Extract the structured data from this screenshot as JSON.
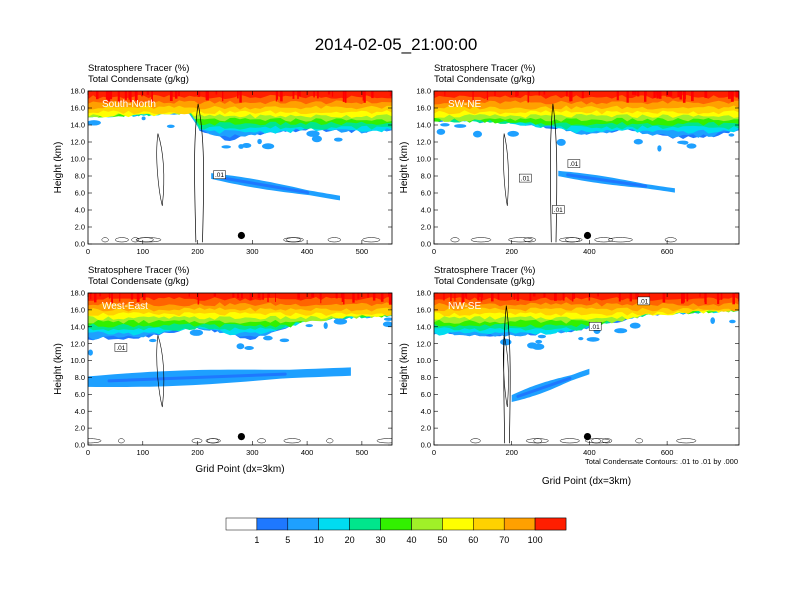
{
  "title": "2014-02-05_21:00:00",
  "colors": {
    "levels": [
      "#ffffff",
      "#1e78ff",
      "#1ea0ff",
      "#00dcf0",
      "#00e68c",
      "#32f000",
      "#a0f028",
      "#ffff00",
      "#ffd200",
      "#ffa000",
      "#ff6400",
      "#ff1e00"
    ],
    "contour": "#000000"
  },
  "colorbar": {
    "labels": [
      "1",
      "5",
      "10",
      "20",
      "30",
      "40",
      "50",
      "60",
      "70",
      "100"
    ]
  },
  "note": "Total Condensate Contours: .01 to .01 by .000",
  "chart_data": [
    {
      "type": "heatmap",
      "title_lines": [
        "Stratosphere Tracer   (%)",
        "Total Condensate   (g/kg)"
      ],
      "region_label": "South-North",
      "xlabel": "",
      "ylabel": "Height (km)",
      "xlim": [
        0,
        555
      ],
      "ylim": [
        0,
        18
      ],
      "x_ticks": [
        0,
        100,
        200,
        300,
        400,
        500
      ],
      "y_ticks": [
        "0.0",
        "2.0",
        "4.0",
        "6.0",
        "8.0",
        "10.0",
        "12.0",
        "14.0",
        "16.0",
        "18.0"
      ],
      "marker": {
        "x": 280,
        "y": 1.0
      },
      "contour_labels": [
        {
          "x": 240,
          "y": 8.1,
          "text": ".01"
        }
      ],
      "tracer_base_km": [
        [
          0,
          15.1
        ],
        [
          100,
          15.2
        ],
        [
          190,
          15.5
        ],
        [
          200,
          13.5
        ],
        [
          250,
          12.2
        ],
        [
          300,
          12.8
        ],
        [
          400,
          13.5
        ],
        [
          500,
          13.2
        ],
        [
          555,
          13.5
        ]
      ],
      "anvil_plume": {
        "start": [
          225,
          8.0
        ],
        "end": [
          460,
          5.4
        ],
        "thickness_km": 1.0
      },
      "grid": false
    },
    {
      "type": "heatmap",
      "title_lines": [
        "Stratosphere Tracer   (%)",
        "Total Condensate   (g/kg)"
      ],
      "region_label": "SW-NE",
      "xlabel": "",
      "ylabel": "Height (km)",
      "xlim": [
        0,
        785
      ],
      "ylim": [
        0,
        18
      ],
      "x_ticks": [
        0,
        200,
        400,
        600
      ],
      "y_ticks": [
        "0.0",
        "2.0",
        "4.0",
        "6.0",
        "8.0",
        "10.0",
        "12.0",
        "14.0",
        "16.0",
        "18.0"
      ],
      "marker": {
        "x": 395,
        "y": 1.0
      },
      "contour_labels": [
        {
          "x": 235,
          "y": 7.7,
          "text": ".01"
        },
        {
          "x": 320,
          "y": 4.0,
          "text": ".01"
        },
        {
          "x": 360,
          "y": 9.4,
          "text": ".01"
        }
      ],
      "tracer_base_km": [
        [
          0,
          14.6
        ],
        [
          150,
          14.4
        ],
        [
          300,
          13.8
        ],
        [
          400,
          12.8
        ],
        [
          500,
          13.5
        ],
        [
          600,
          12.5
        ],
        [
          700,
          12.6
        ],
        [
          785,
          13.5
        ]
      ],
      "anvil_plume": {
        "start": [
          320,
          8.3
        ],
        "end": [
          620,
          6.3
        ],
        "thickness_km": 0.9
      },
      "grid": false
    },
    {
      "type": "heatmap",
      "title_lines": [
        "Stratosphere Tracer   (%)",
        "Total Condensate   (g/kg)"
      ],
      "region_label": "West-East",
      "xlabel": "Grid Point (dx=3km)",
      "ylabel": "Height (km)",
      "xlim": [
        0,
        555
      ],
      "ylim": [
        0,
        18
      ],
      "x_ticks": [
        0,
        100,
        200,
        300,
        400,
        500
      ],
      "y_ticks": [
        "0.0",
        "2.0",
        "4.0",
        "6.0",
        "8.0",
        "10.0",
        "12.0",
        "14.0",
        "16.0",
        "18.0"
      ],
      "marker": {
        "x": 280,
        "y": 1.0
      },
      "contour_labels": [
        {
          "x": 60,
          "y": 11.5,
          "text": ".01"
        }
      ],
      "tracer_base_km": [
        [
          0,
          12.5
        ],
        [
          100,
          12.8
        ],
        [
          200,
          14.0
        ],
        [
          300,
          12.5
        ],
        [
          400,
          14.8
        ],
        [
          500,
          15.2
        ],
        [
          555,
          15.4
        ]
      ],
      "anvil_plume": {
        "start": [
          0,
          7.5
        ],
        "end": [
          480,
          8.7
        ],
        "thickness_km": 1.8
      },
      "grid": false
    },
    {
      "type": "heatmap",
      "title_lines": [
        "Stratosphere Tracer   (%)",
        "Total Condensate   (g/kg)"
      ],
      "region_label": "NW-SE",
      "xlabel": "Grid Point (dx=3km)",
      "ylabel": "Height (km)",
      "xlim": [
        0,
        785
      ],
      "ylim": [
        0,
        18
      ],
      "x_ticks": [
        0,
        200,
        400,
        600
      ],
      "y_ticks": [
        "0.0",
        "2.0",
        "4.0",
        "6.0",
        "8.0",
        "10.0",
        "12.0",
        "14.0",
        "16.0",
        "18.0"
      ],
      "marker": {
        "x": 395,
        "y": 1.0
      },
      "contour_labels": [
        {
          "x": 415,
          "y": 14.0,
          "text": ".01"
        },
        {
          "x": 540,
          "y": 17.0,
          "text": ".01"
        }
      ],
      "tracer_base_km": [
        [
          0,
          13.2
        ],
        [
          200,
          13.0
        ],
        [
          350,
          13.5
        ],
        [
          450,
          14.5
        ],
        [
          550,
          15.5
        ],
        [
          700,
          15.8
        ],
        [
          785,
          16.0
        ]
      ],
      "anvil_plume": {
        "start": [
          200,
          5.5
        ],
        "end": [
          400,
          8.7
        ],
        "thickness_km": 1.2
      },
      "grid": false
    }
  ]
}
